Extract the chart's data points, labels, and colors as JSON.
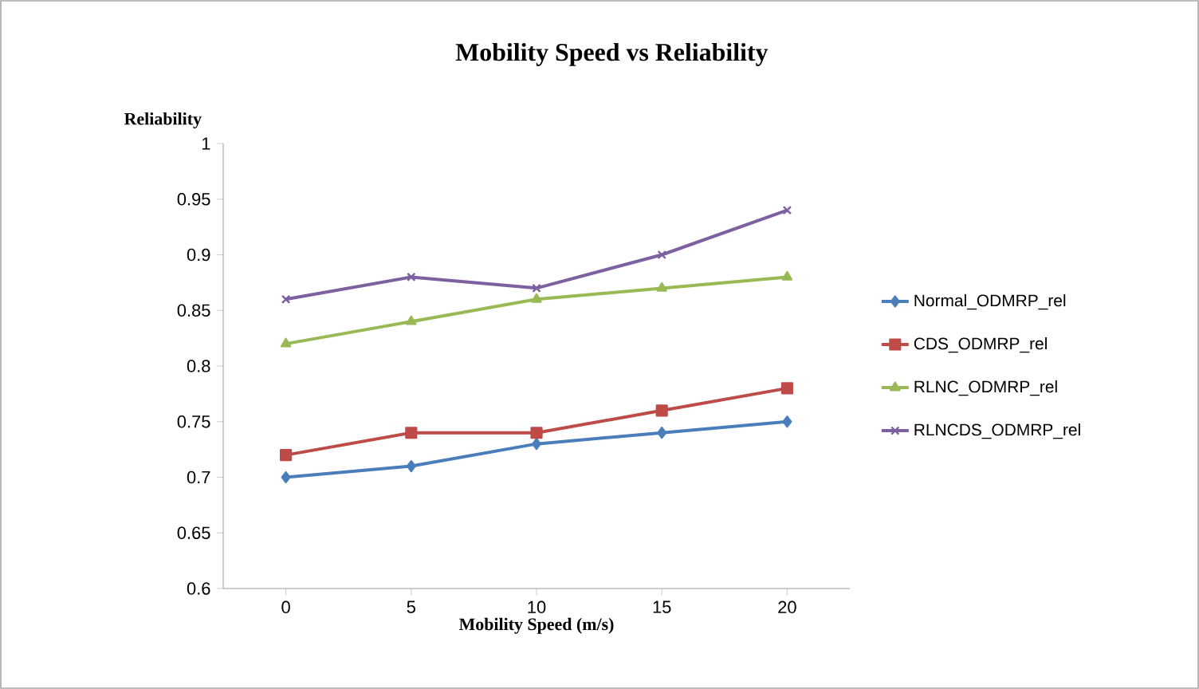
{
  "chart_data": {
    "type": "line",
    "title": "Mobility Speed vs Reliability",
    "xlabel": "Mobility Speed (m/s)",
    "ylabel": "Reliability",
    "categories": [
      "0",
      "5",
      "10",
      "15",
      "20"
    ],
    "ylim": [
      0.6,
      1
    ],
    "yticks": [
      0.6,
      0.65,
      0.7,
      0.75,
      0.8,
      0.85,
      0.9,
      0.95,
      1
    ],
    "grid": false,
    "legend": "right",
    "line_style": "solid",
    "series": [
      {
        "name": "Normal_ODMRP_rel",
        "color": "#4a7ebb",
        "marker": "diamond",
        "values": [
          0.7,
          0.71,
          0.73,
          0.74,
          0.75
        ]
      },
      {
        "name": "CDS_ODMRP_rel",
        "color": "#be4b48",
        "marker": "square",
        "values": [
          0.72,
          0.74,
          0.74,
          0.76,
          0.78
        ]
      },
      {
        "name": "RLNC_ODMRP_rel",
        "color": "#98b954",
        "marker": "triangle",
        "values": [
          0.82,
          0.84,
          0.86,
          0.87,
          0.88
        ]
      },
      {
        "name": "RLNCDS_ODMRP_rel",
        "color": "#7d60a0",
        "marker": "cross",
        "values": [
          0.86,
          0.88,
          0.87,
          0.9,
          0.94
        ]
      }
    ]
  }
}
